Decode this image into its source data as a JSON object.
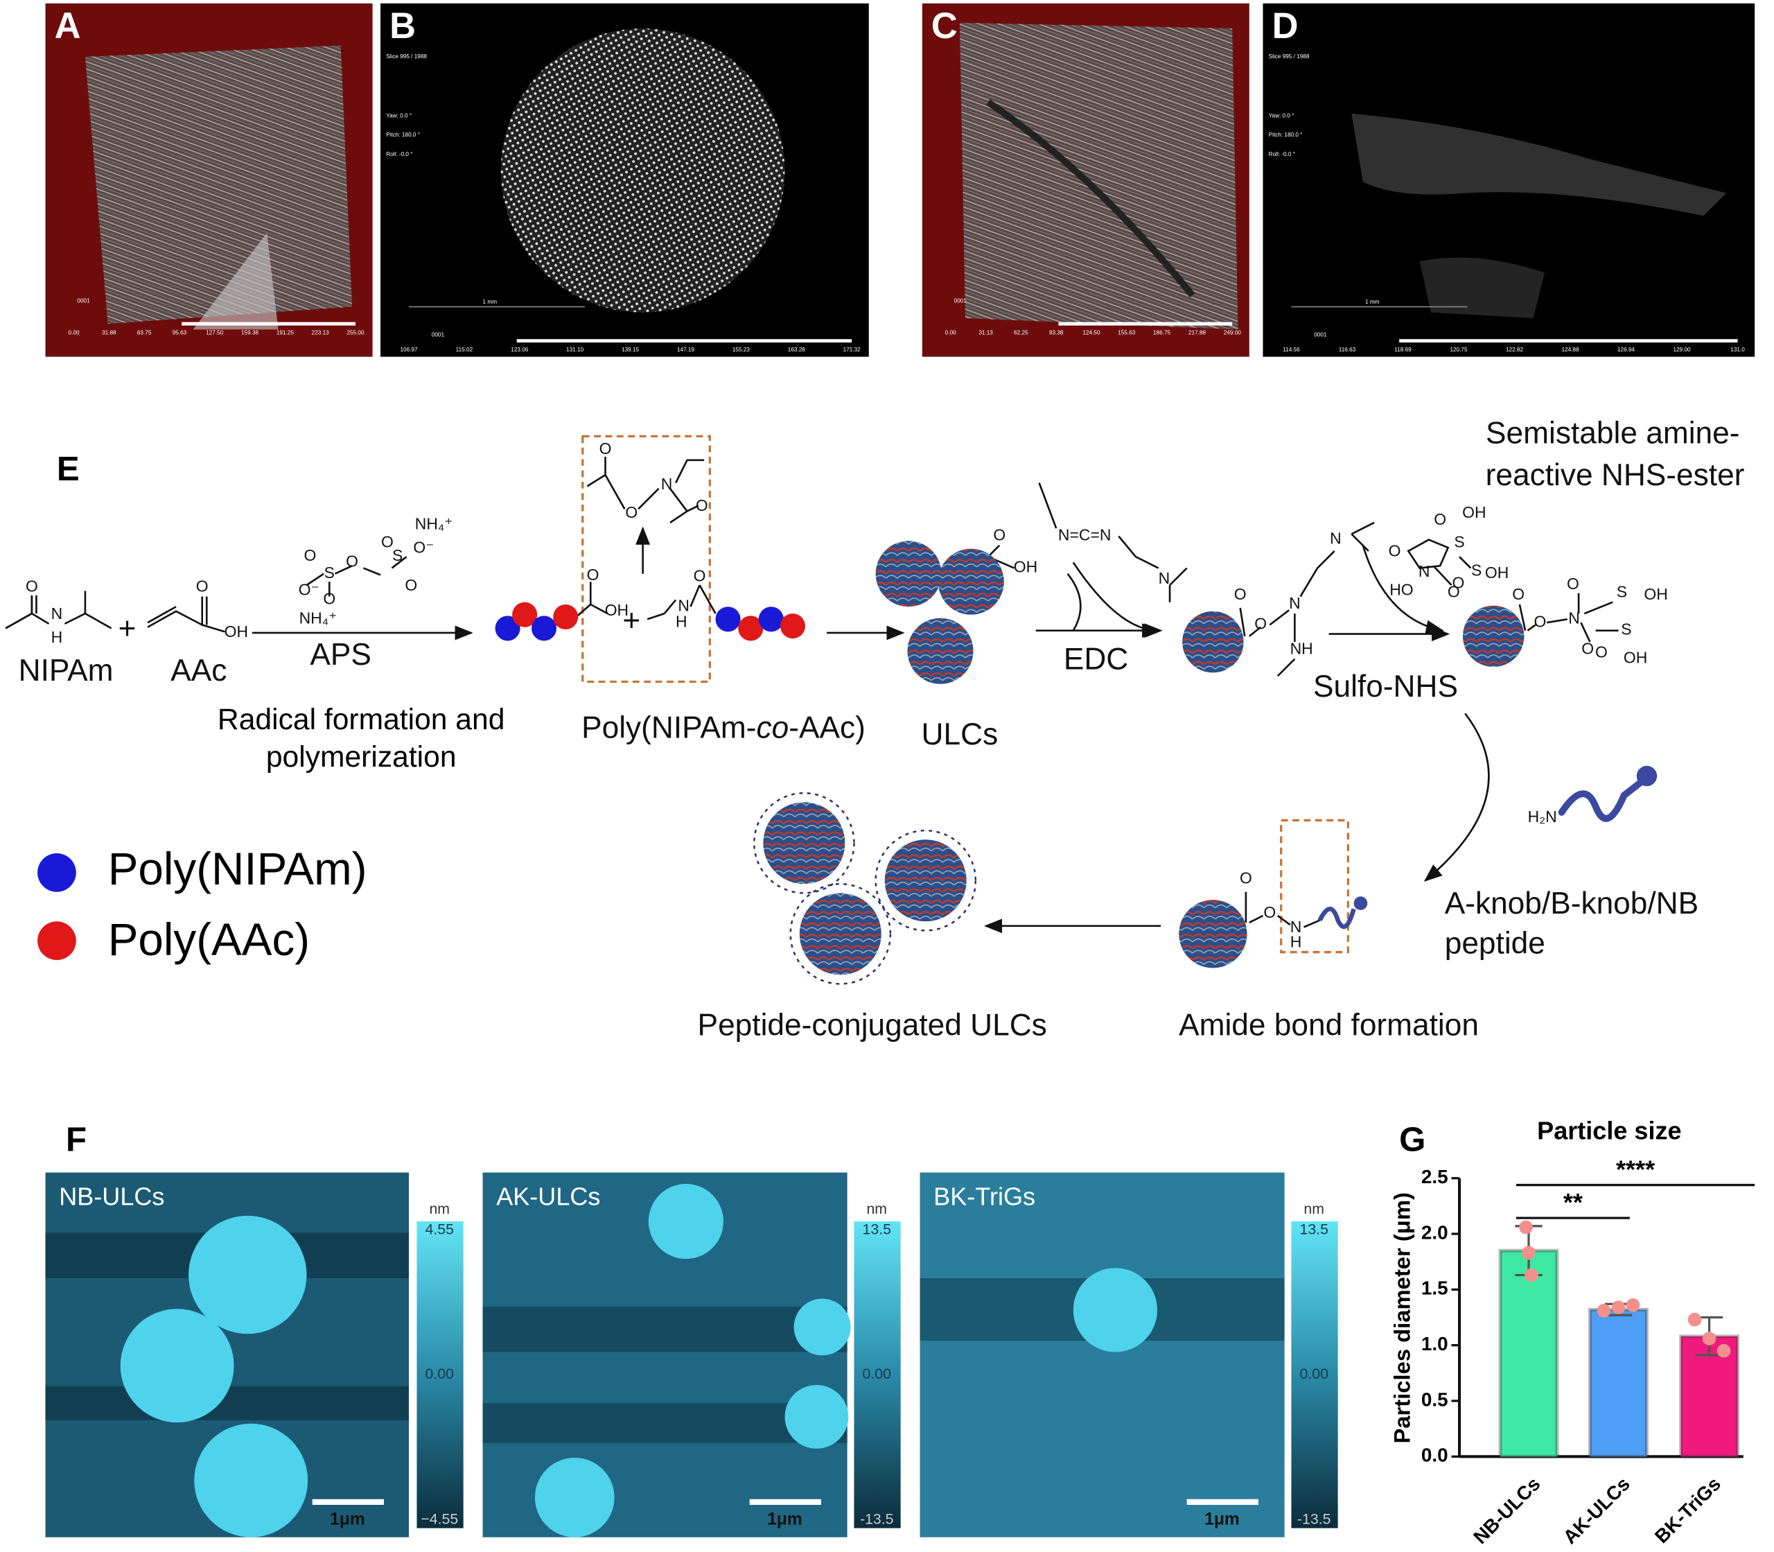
{
  "panels_ad": [
    {
      "label": "A",
      "frame": "0001",
      "scale": [
        "0.00",
        "31.88",
        "63.75",
        "95.63",
        "127.50",
        "159.38",
        "191.25",
        "223.13",
        "255.00"
      ]
    },
    {
      "label": "B",
      "frame": "0001",
      "scale": [
        "106.97",
        "115.02",
        "123.06",
        "131.10",
        "139.15",
        "147.19",
        "155.23",
        "163.28",
        "171.32"
      ],
      "scale_bar": "1 mm",
      "info": [
        "Slice 995 / 1988",
        "Yaw: 0.0 °",
        "Pitch: 180.0 °",
        "Roll: -0.0 °"
      ]
    },
    {
      "label": "C",
      "frame": "0001",
      "scale": [
        "0.00",
        "31.13",
        "62.25",
        "93.38",
        "124.50",
        "155.63",
        "186.75",
        "217.88",
        "249.00"
      ]
    },
    {
      "label": "D",
      "frame": "0001",
      "scale": [
        "114.56",
        "116.63",
        "118.69",
        "120.75",
        "122.82",
        "124.88",
        "126.94",
        "129.00",
        "131.0"
      ],
      "scale_bar": "1 mm",
      "info": [
        "Slice 995 / 1988",
        "Yaw: 0.0 °",
        "Pitch: 180.0 °",
        "Roll: -0.0 °"
      ]
    }
  ],
  "panel_e": {
    "label": "E",
    "nipam": "NIPAm",
    "aac": "AAc",
    "plus": "+",
    "aps": "APS",
    "step1": [
      "Radical formation and",
      "polymerization"
    ],
    "copolymer": [
      "Poly(NIPAm-",
      "co",
      "-AAc)"
    ],
    "ulcs": "ULCs",
    "edc": "EDC",
    "sulfo_nhs": "Sulfo-NHS",
    "nhs_ester": [
      "Semistable amine-",
      "reactive NHS-ester"
    ],
    "peptide": [
      "A-knob/B-knob/NB",
      "peptide"
    ],
    "amide": "Amide bond formation",
    "conjugated": "Peptide-conjugated ULCs",
    "legend": [
      "Poly(NIPAm)",
      "Poly(AAc)"
    ],
    "atoms": [
      "O",
      "N",
      "H",
      "O",
      "OH",
      "NH₄⁺",
      "O",
      "O",
      "S",
      "O",
      "S",
      "O⁻",
      "O⁻",
      "O",
      "O",
      "NH₄⁺",
      "O",
      "OH",
      "N",
      "H",
      "O",
      "O",
      "O",
      "N",
      "O",
      "O",
      "OH",
      "N=C=N",
      "N",
      "O",
      "O",
      "N",
      "NH",
      "N",
      "OH",
      "O",
      "S",
      "O",
      "N",
      "O",
      "HO",
      "S",
      "O",
      "OH",
      "O",
      "O",
      "N",
      "O",
      "O",
      "S",
      "OH",
      "S",
      "O",
      "OH",
      "H₂N",
      "O",
      "O",
      "N",
      "H"
    ]
  },
  "panel_f": {
    "label": "F",
    "images": [
      {
        "name": "NB-ULCs",
        "unit": "nm",
        "colorbar": [
          "4.55",
          "0.00",
          "−4.55"
        ],
        "scale_bar": "1μm"
      },
      {
        "name": "AK-ULCs",
        "unit": "nm",
        "colorbar": [
          "13.5",
          "0.00",
          "-13.5"
        ],
        "scale_bar": "1μm"
      },
      {
        "name": "BK-TriGs",
        "unit": "nm",
        "colorbar": [
          "13.5",
          "0.00",
          "-13.5"
        ],
        "scale_bar": "1μm"
      }
    ]
  },
  "panel_g_label": "G",
  "chart_data": {
    "type": "bar",
    "title": "Particle size",
    "ylabel": "Particles diameter (μm)",
    "categories": [
      "NB-ULCs",
      "AK-ULCs",
      "BK-TriGs"
    ],
    "values": [
      1.85,
      1.32,
      1.08
    ],
    "errors": [
      0.22,
      0.05,
      0.17
    ],
    "points": [
      [
        2.06,
        1.83,
        1.63
      ],
      [
        1.31,
        1.34,
        1.36
      ],
      [
        1.23,
        1.06,
        0.95
      ]
    ],
    "colors": [
      "#3de8a3",
      "#4d9ef5",
      "#f0197d"
    ],
    "point_color": "#f4908c",
    "ylim": [
      0,
      2.5
    ],
    "yticks": [
      {
        "value": 0,
        "label": "0.0"
      },
      {
        "value": 0.5,
        "label": "0.5"
      },
      {
        "value": 1,
        "label": "1.0"
      },
      {
        "value": 1.5,
        "label": "1.5"
      },
      {
        "value": 2,
        "label": "2.0"
      },
      {
        "value": 2.5,
        "label": "2.5"
      }
    ],
    "annotations": [
      "**",
      "****"
    ]
  }
}
